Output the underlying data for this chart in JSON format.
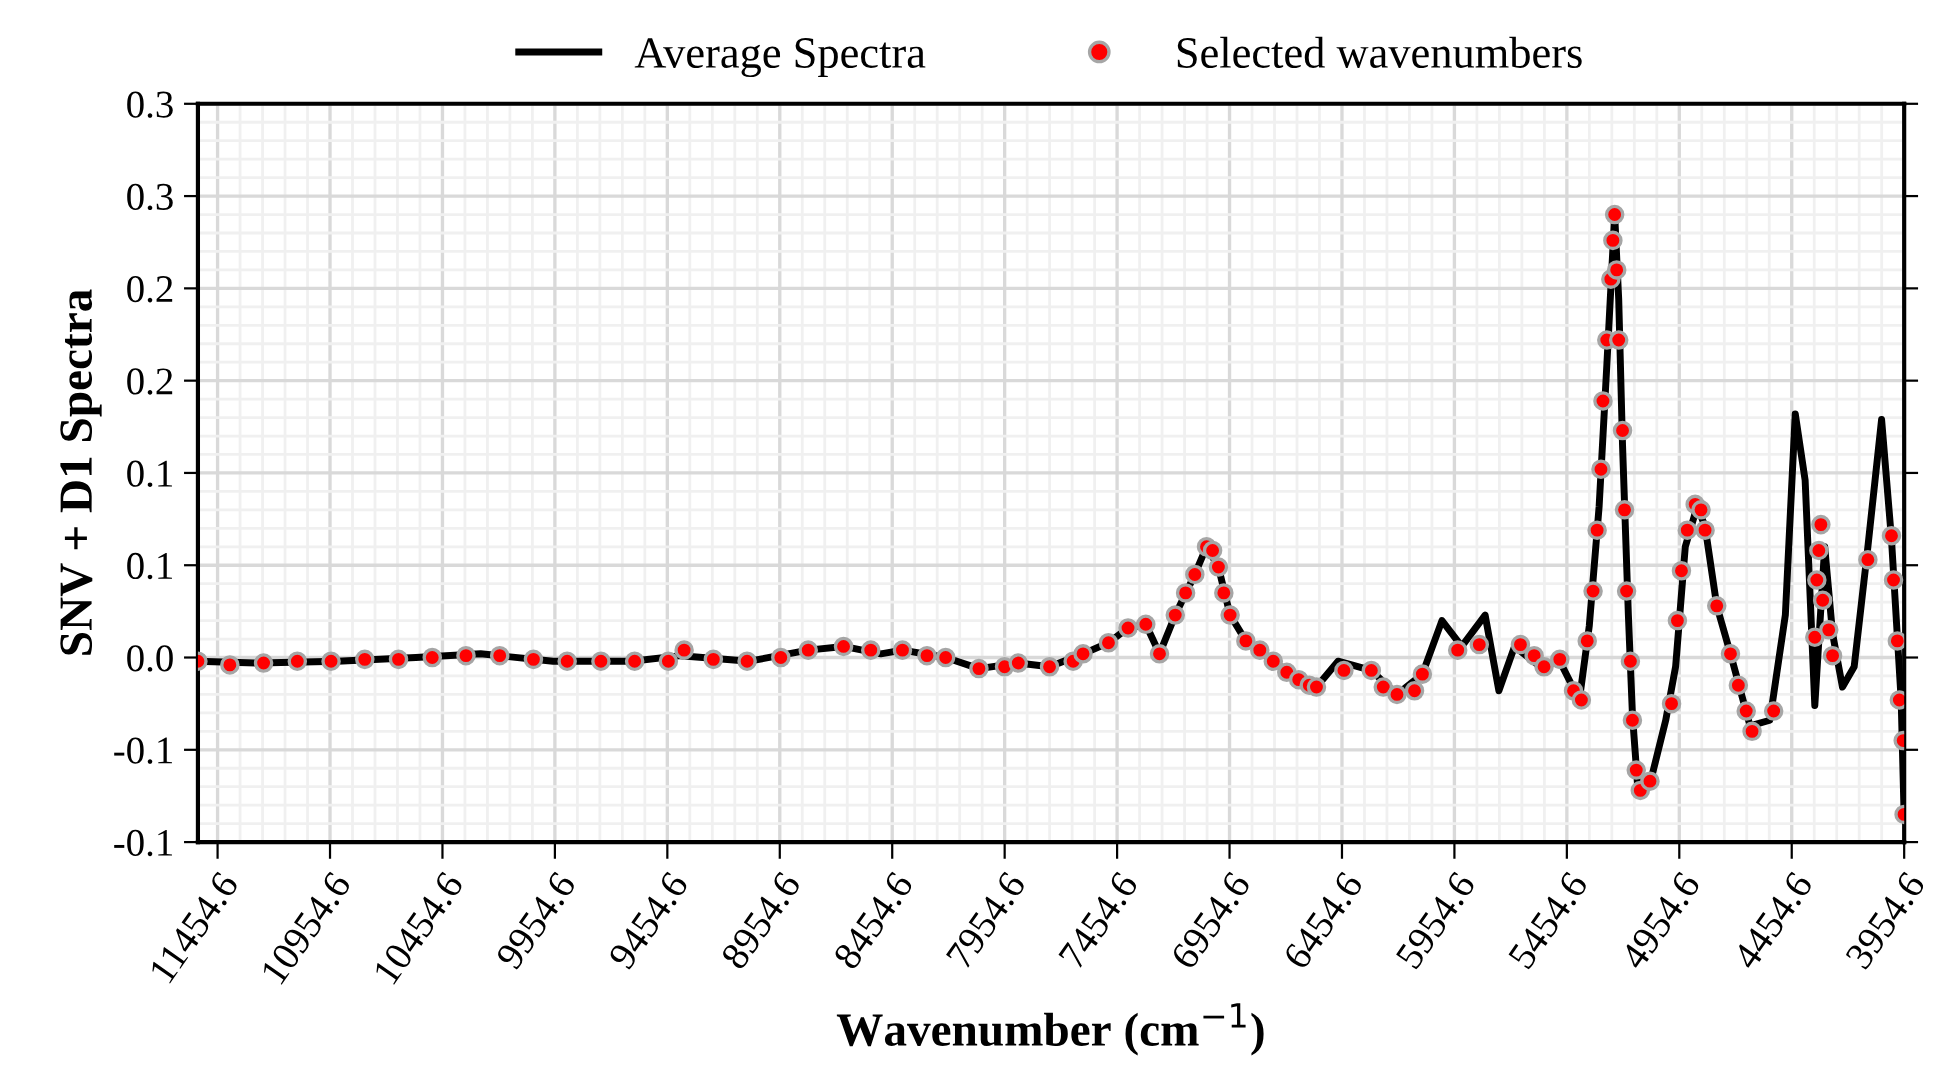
{
  "chart_data": {
    "type": "line",
    "xlabel": "Wavenumber (cm$^{−1}$)",
    "ylabel": "SNV + D1 Spectra",
    "xlim": [
      11542,
      3954.6
    ],
    "ylim": [
      -0.1,
      0.3
    ],
    "xticks": [
      11454.6,
      10954.6,
      10454.6,
      9954.6,
      9454.6,
      8954.6,
      8454.6,
      7954.6,
      7454.6,
      6954.6,
      6454.6,
      5954.6,
      5454.6,
      4954.6,
      4454.6,
      3954.6
    ],
    "yticks": [
      {
        "value": -0.1,
        "label": "-0.1"
      },
      {
        "value": -0.05,
        "label": "-0.1"
      },
      {
        "value": 0,
        "label": "0.0"
      },
      {
        "value": 0.05,
        "label": "0.1"
      },
      {
        "value": 0.1,
        "label": "0.1"
      },
      {
        "value": 0.15,
        "label": "0.2"
      },
      {
        "value": 0.2,
        "label": "0.2"
      },
      {
        "value": 0.25,
        "label": "0.3"
      },
      {
        "value": 0.3,
        "label": "0.3"
      }
    ],
    "grid": true,
    "legend": "top",
    "series": [
      {
        "name": "Average Spectra",
        "color": "#000000",
        "marker": "none",
        "line_style": "solid",
        "x": [
          11542,
          11271,
          10922,
          10573,
          10285,
          9963,
          9613,
          9395,
          9090,
          8828,
          8671,
          8505,
          8409,
          8217,
          8069,
          7894,
          7755,
          7606,
          7493,
          7406,
          7327,
          7266,
          7196,
          7109,
          7057,
          7004,
          6952,
          6882,
          6760,
          6647,
          6568,
          6472,
          6324,
          6210,
          6097,
          6010,
          5922,
          5818,
          5757,
          5687,
          5573,
          5486,
          5399,
          5355,
          5311,
          5277,
          5242,
          5224,
          5207,
          5181,
          5163,
          5137,
          5076,
          5015,
          4971,
          4928,
          4875,
          4840,
          4788,
          4727,
          4640,
          4552,
          4483,
          4439,
          4395,
          4352,
          4308,
          4273,
          4229,
          4177,
          4116,
          4055,
          4011,
          3968,
          3955
        ],
        "values": [
          -0.002,
          -0.003,
          -0.002,
          0.0,
          0.002,
          -0.002,
          -0.002,
          0.001,
          -0.002,
          0.004,
          0.006,
          0.002,
          0.004,
          0.0,
          -0.006,
          -0.003,
          -0.005,
          0.002,
          0.008,
          0.016,
          0.018,
          0.002,
          0.023,
          0.045,
          0.06,
          0.049,
          0.023,
          0.009,
          -0.002,
          -0.012,
          -0.016,
          -0.002,
          -0.007,
          -0.02,
          -0.009,
          0.02,
          0.006,
          0.023,
          -0.018,
          0.006,
          -0.005,
          -0.002,
          -0.023,
          0.017,
          0.082,
          0.158,
          0.24,
          0.194,
          0.115,
          0.023,
          -0.031,
          -0.074,
          -0.064,
          -0.034,
          -0.005,
          0.06,
          0.082,
          0.071,
          0.028,
          0.002,
          -0.037,
          -0.034,
          0.023,
          0.132,
          0.096,
          -0.026,
          0.06,
          0.013,
          -0.016,
          -0.005,
          0.06,
          0.129,
          0.064,
          -0.023,
          -0.085
        ]
      },
      {
        "name": "Selected wavenumbers",
        "type": "scatter",
        "color": "#ff0000",
        "marker": "circle",
        "x": [
          11542,
          11400,
          11250,
          11100,
          10950,
          10800,
          10650,
          10500,
          10350,
          10200,
          10050,
          9900,
          9750,
          9600,
          9450,
          9380,
          9250,
          9100,
          8950,
          8828,
          8671,
          8550,
          8409,
          8300,
          8217,
          8069,
          7955,
          7894,
          7755,
          7650,
          7606,
          7493,
          7406,
          7327,
          7266,
          7196,
          7150,
          7109,
          7057,
          7030,
          7004,
          6980,
          6952,
          6882,
          6820,
          6760,
          6700,
          6647,
          6600,
          6568,
          6446,
          6324,
          6271,
          6210,
          6132,
          6097,
          5940,
          5844,
          5661,
          5600,
          5556,
          5486,
          5425,
          5390,
          5364,
          5338,
          5320,
          5303,
          5294,
          5277,
          5259,
          5250,
          5242,
          5233,
          5224,
          5207,
          5198,
          5189,
          5172,
          5163,
          5146,
          5128,
          5085,
          4989,
          4963,
          4945,
          4919,
          4884,
          4858,
          4840,
          4788,
          4727,
          4692,
          4657,
          4631,
          4535,
          4352,
          4343,
          4334,
          4325,
          4317,
          4290,
          4273,
          4116,
          4011,
          4002,
          3985,
          3976,
          3959,
          3955
        ],
        "values": [
          -0.002,
          -0.004,
          -0.003,
          -0.002,
          -0.002,
          -0.001,
          -0.001,
          0.0,
          0.001,
          0.001,
          -0.001,
          -0.002,
          -0.002,
          -0.002,
          -0.002,
          0.004,
          -0.001,
          -0.002,
          0.0,
          0.004,
          0.006,
          0.004,
          0.004,
          0.001,
          0.0,
          -0.006,
          -0.005,
          -0.003,
          -0.005,
          -0.002,
          0.002,
          0.008,
          0.016,
          0.018,
          0.002,
          0.023,
          0.035,
          0.045,
          0.06,
          0.058,
          0.049,
          0.035,
          0.023,
          0.009,
          0.004,
          -0.002,
          -0.008,
          -0.012,
          -0.015,
          -0.016,
          -0.007,
          -0.007,
          -0.016,
          -0.02,
          -0.018,
          -0.009,
          0.004,
          0.007,
          0.007,
          0.001,
          -0.005,
          -0.001,
          -0.018,
          -0.023,
          0.009,
          0.036,
          0.069,
          0.102,
          0.139,
          0.172,
          0.205,
          0.226,
          0.24,
          0.21,
          0.172,
          0.123,
          0.08,
          0.036,
          -0.002,
          -0.034,
          -0.061,
          -0.072,
          -0.067,
          -0.025,
          0.02,
          0.047,
          0.069,
          0.083,
          0.08,
          0.069,
          0.028,
          0.002,
          -0.015,
          -0.029,
          -0.04,
          -0.029,
          0.011,
          0.042,
          0.058,
          0.072,
          0.031,
          0.015,
          0.001,
          0.053,
          0.066,
          0.042,
          0.009,
          -0.023,
          -0.045,
          -0.085
        ]
      }
    ]
  }
}
